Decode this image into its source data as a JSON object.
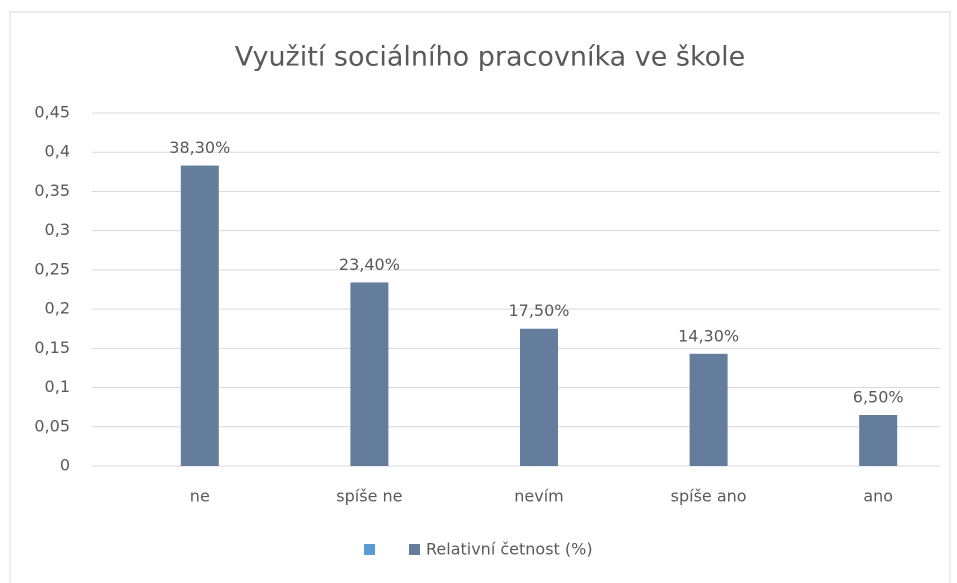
{
  "chart_data": {
    "type": "bar",
    "title": "Využití sociálního pracovníka ve škole",
    "categories": [
      "ne",
      "spíše ne",
      "nevím",
      "spíše ano",
      "ano"
    ],
    "series": [
      {
        "name": "Relativní četnost (%)",
        "color": "#657d9c",
        "values": [
          0.383,
          0.234,
          0.175,
          0.143,
          0.065
        ],
        "value_labels": [
          "38,30%",
          "23,40%",
          "17,50%",
          "14,30%",
          "6,50%"
        ]
      }
    ],
    "ylim": [
      0,
      0.45
    ],
    "yticks": [
      0,
      {
        "value": 0.05,
        "label": "0,05"
      },
      {
        "value": 0.1,
        "label": "0,1"
      },
      {
        "value": 0.15,
        "label": "0,15"
      },
      {
        "value": 0.2,
        "label": "0,2"
      },
      {
        "value": 0.25,
        "label": "0,25"
      },
      {
        "value": 0.3,
        "label": "0,3"
      },
      {
        "value": 0.35,
        "label": "0,35"
      },
      {
        "value": 0.4,
        "label": "0,4"
      },
      {
        "value": 0.45,
        "label": "0,45"
      }
    ],
    "grid": true,
    "legend": "bottom"
  }
}
